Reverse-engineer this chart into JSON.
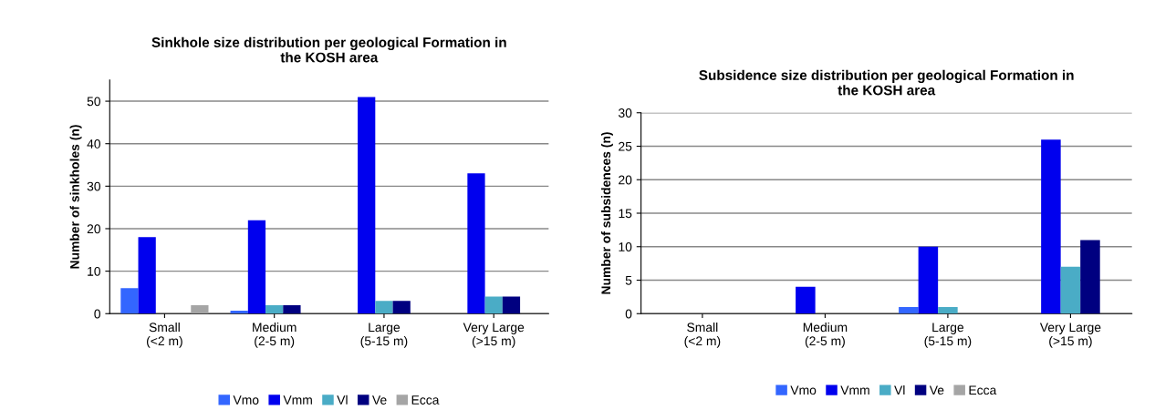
{
  "chart_data": [
    {
      "type": "bar",
      "title": "Sinkhole size distribution per geological Formation in\nthe KOSH area",
      "ylabel": "Number of sinkholes (n)",
      "categories": [
        "Small\n(<2 m)",
        "Medium\n(2-5 m)",
        "Large\n(5-15 m)",
        "Very Large\n(>15 m)"
      ],
      "series": [
        {
          "name": "Vmo",
          "color": "#3366ff",
          "values": [
            6,
            0.7,
            null,
            null
          ]
        },
        {
          "name": "Vmm",
          "color": "#0000ee",
          "values": [
            18,
            22,
            51,
            33
          ]
        },
        {
          "name": "Vl",
          "color": "#4aacc6",
          "values": [
            null,
            2,
            3,
            4
          ]
        },
        {
          "name": "Ve",
          "color": "#000080",
          "values": [
            null,
            2,
            3,
            4
          ]
        },
        {
          "name": "Ecca",
          "color": "#a5a5a5",
          "values": [
            2,
            null,
            null,
            null
          ]
        }
      ],
      "ylim": [
        0,
        55
      ],
      "yticks": [
        0,
        10,
        20,
        30,
        40,
        50
      ],
      "grid": "y",
      "legend": "bottom"
    },
    {
      "type": "bar",
      "title": "Subsidence size distribution per geological Formation in\nthe KOSH area",
      "ylabel": "Number of subsidences (n)",
      "categories": [
        "Small\n(<2 m)",
        "Medium\n(2-5 m)",
        "Large\n(5-15 m)",
        "Very Large\n(>15 m)"
      ],
      "series": [
        {
          "name": "Vmo",
          "color": "#3366ff",
          "values": [
            null,
            null,
            1,
            null
          ]
        },
        {
          "name": "Vmm",
          "color": "#0000ee",
          "values": [
            null,
            4,
            10,
            26
          ]
        },
        {
          "name": "Vl",
          "color": "#4aacc6",
          "values": [
            null,
            null,
            1,
            7
          ]
        },
        {
          "name": "Ve",
          "color": "#000080",
          "values": [
            null,
            null,
            null,
            11
          ]
        },
        {
          "name": "Ecca",
          "color": "#a5a5a5",
          "values": [
            null,
            null,
            null,
            null
          ]
        }
      ],
      "ylim": [
        0,
        30
      ],
      "yticks": [
        0,
        5,
        10,
        15,
        20,
        25,
        30
      ],
      "grid": "y",
      "legend": "bottom"
    }
  ]
}
